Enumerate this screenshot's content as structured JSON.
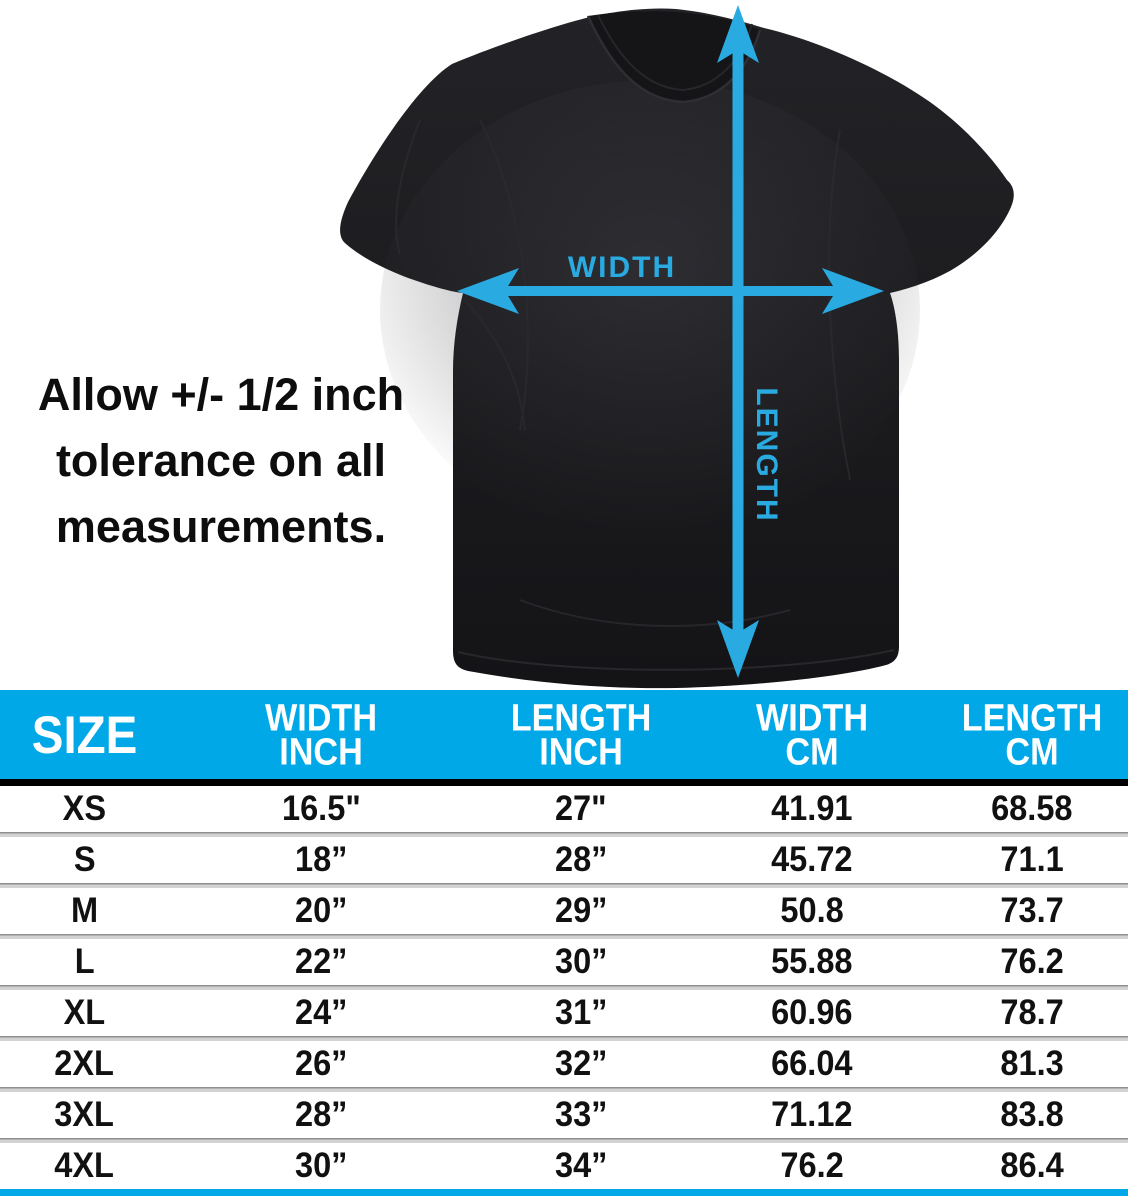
{
  "page": {
    "background": "#ffffff"
  },
  "colors": {
    "accent_cyan": "#29ABE2",
    "header_cyan": "#00A8E8",
    "shirt_black": "#1b1b1e",
    "text_black": "#111111",
    "divider_gray": "#8f8f8f"
  },
  "diagram": {
    "width_label": "WIDTH",
    "length_label": "LENGTH"
  },
  "tolerance": {
    "lines": [
      "Allow +/- 1/2 inch",
      "tolerance on all",
      "measurements."
    ]
  },
  "table": {
    "columns": [
      {
        "lines": [
          "SIZE"
        ]
      },
      {
        "lines": [
          "WIDTH",
          "INCH"
        ]
      },
      {
        "lines": [
          "LENGTH",
          "INCH"
        ]
      },
      {
        "lines": [
          "WIDTH",
          "CM"
        ]
      },
      {
        "lines": [
          "LENGTH",
          "CM"
        ]
      }
    ],
    "rows": [
      {
        "size": "XS",
        "width_inch": "16.5\"",
        "length_inch": "27\"",
        "width_cm": "41.91",
        "length_cm": "68.58"
      },
      {
        "size": "S",
        "width_inch": "18”",
        "length_inch": "28”",
        "width_cm": "45.72",
        "length_cm": "71.1"
      },
      {
        "size": "M",
        "width_inch": "20”",
        "length_inch": "29”",
        "width_cm": "50.8",
        "length_cm": "73.7"
      },
      {
        "size": "L",
        "width_inch": "22”",
        "length_inch": "30”",
        "width_cm": "55.88",
        "length_cm": "76.2"
      },
      {
        "size": "XL",
        "width_inch": "24”",
        "length_inch": "31”",
        "width_cm": "60.96",
        "length_cm": "78.7"
      },
      {
        "size": "2XL",
        "width_inch": "26”",
        "length_inch": "32”",
        "width_cm": "66.04",
        "length_cm": "81.3"
      },
      {
        "size": "3XL",
        "width_inch": "28”",
        "length_inch": "33”",
        "width_cm": "71.12",
        "length_cm": "83.8"
      },
      {
        "size": "4XL",
        "width_inch": "30”",
        "length_inch": "34”",
        "width_cm": "76.2",
        "length_cm": "86.4"
      }
    ]
  },
  "chart_data": {
    "type": "table",
    "columns": [
      "SIZE",
      "WIDTH INCH",
      "LENGTH INCH",
      "WIDTH CM",
      "LENGTH CM"
    ],
    "rows": [
      [
        "XS",
        "16.5\"",
        "27\"",
        "41.91",
        "68.58"
      ],
      [
        "S",
        "18”",
        "28”",
        "45.72",
        "71.1"
      ],
      [
        "M",
        "20”",
        "29”",
        "50.8",
        "73.7"
      ],
      [
        "L",
        "22”",
        "30”",
        "55.88",
        "76.2"
      ],
      [
        "XL",
        "24”",
        "31”",
        "60.96",
        "78.7"
      ],
      [
        "2XL",
        "26”",
        "32”",
        "66.04",
        "81.3"
      ],
      [
        "3XL",
        "28”",
        "33”",
        "71.12",
        "83.8"
      ],
      [
        "4XL",
        "30”",
        "34”",
        "76.2",
        "86.4"
      ]
    ],
    "annotations": [
      "Allow +/- 1/2 inch tolerance on all measurements.",
      "WIDTH",
      "LENGTH"
    ]
  }
}
